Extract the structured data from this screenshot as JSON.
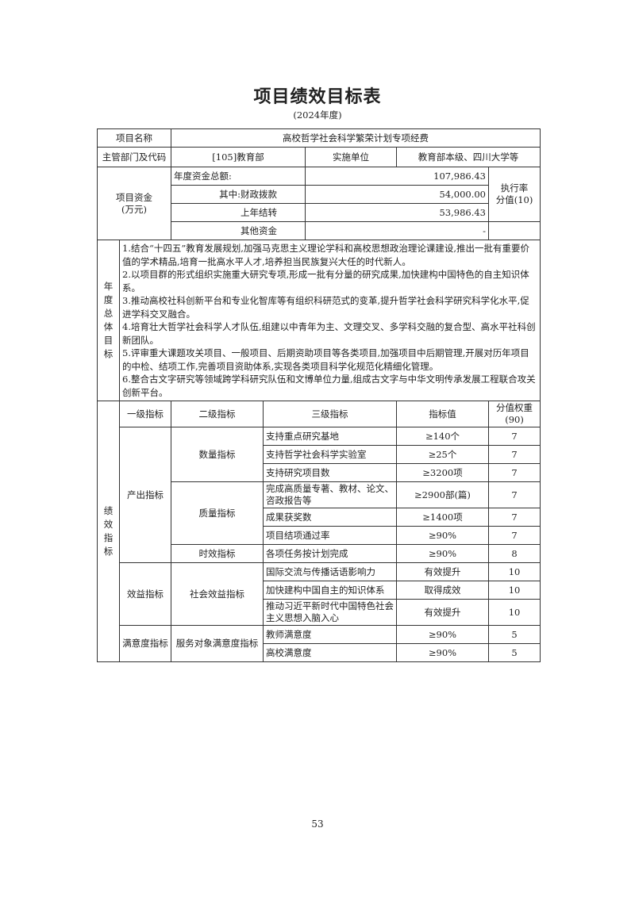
{
  "title": "项目绩效目标表",
  "subtitle": "(2024年度)",
  "project": {
    "name_label": "项目名称",
    "name_value": "高校哲学社会科学繁荣计划专项经费",
    "dept_label": "主管部门及代码",
    "dept_value": "[105]教育部",
    "impl_label": "实施单位",
    "impl_value": "教育部本级、四川大学等"
  },
  "funds": {
    "label_line1": "项目资金",
    "label_line2": "(万元)",
    "rows": [
      {
        "label": "年度资金总额:",
        "value": "107,986.43"
      },
      {
        "label": "其中:财政拨款",
        "value": "54,000.00"
      },
      {
        "label": "上年结转",
        "value": "53,986.43"
      },
      {
        "label": "其他资金",
        "value": "-"
      }
    ],
    "rate_line1": "执行率",
    "rate_line2": "分值(10)"
  },
  "goals": {
    "label_chars": [
      "年",
      "度",
      "总",
      "体",
      "目",
      "标"
    ],
    "items": [
      "1.结合“十四五”教育发展规划,加强马克思主义理论学科和高校思想政治理论课建设,推出一批有重要价值的学术精品,培育一批高水平人才,培养担当民族复兴大任的时代新人。",
      "2.以项目群的形式组织实施重大研究专项,形成一批有分量的研究成果,加快建构中国特色的自主知识体系。",
      "3.推动高校社科创新平台和专业化智库等有组织科研范式的变革,提升哲学社会科学研究科学化水平,促进学科交叉融合。",
      "4.培育壮大哲学社会科学人才队伍,组建以中青年为主、文理交叉、多学科交融的复合型、高水平社科创新团队。",
      "5.评审重大课题攻关项目、一般项目、后期资助项目等各类项目,加强项目中后期管理,开展对历年项目的中检、结项工作,完善项目资助体系,实现各类项目科学化规范化精细化管理。",
      "6.整合古文字研究等领域跨学科研究队伍和文博单位力量,组成古文字与中华文明传承发展工程联合攻关创新平台。"
    ]
  },
  "indicators": {
    "label_chars": [
      "绩",
      "效",
      "指",
      "标"
    ],
    "headers": {
      "level1": "一级指标",
      "level2": "二级指标",
      "level3": "三级指标",
      "value": "指标值",
      "weight_line1": "分值权重",
      "weight_line2": "(90)"
    },
    "level1": [
      "产出指标",
      "效益指标",
      "满意度指标"
    ],
    "level2": [
      "数量指标",
      "质量指标",
      "时效指标",
      "社会效益指标",
      "服务对象满意度指标"
    ],
    "rows": [
      {
        "name": "支持重点研究基地",
        "value": "≥140个",
        "weight": "7"
      },
      {
        "name": "支持哲学社会科学实验室",
        "value": "≥25个",
        "weight": "7"
      },
      {
        "name": "支持研究项目数",
        "value": "≥3200项",
        "weight": "7"
      },
      {
        "name": "完成高质量专著、教材、论文、咨政报告等",
        "value": "≥2900部(篇)",
        "weight": "7"
      },
      {
        "name": "成果获奖数",
        "value": "≥1400项",
        "weight": "7"
      },
      {
        "name": "项目结项通过率",
        "value": "≥90%",
        "weight": "7"
      },
      {
        "name": "各项任务按计划完成",
        "value": "≥90%",
        "weight": "8"
      },
      {
        "name": "国际交流与传播话语影响力",
        "value": "有效提升",
        "weight": "10"
      },
      {
        "name": "加快建构中国自主的知识体系",
        "value": "取得成效",
        "weight": "10"
      },
      {
        "name": "推动习近平新时代中国特色社会主义思想入脑入心",
        "value": "有效提升",
        "weight": "10"
      },
      {
        "name": "教师满意度",
        "value": "≥90%",
        "weight": "5"
      },
      {
        "name": "高校满意度",
        "value": "≥90%",
        "weight": "5"
      }
    ]
  },
  "page_number": "53"
}
